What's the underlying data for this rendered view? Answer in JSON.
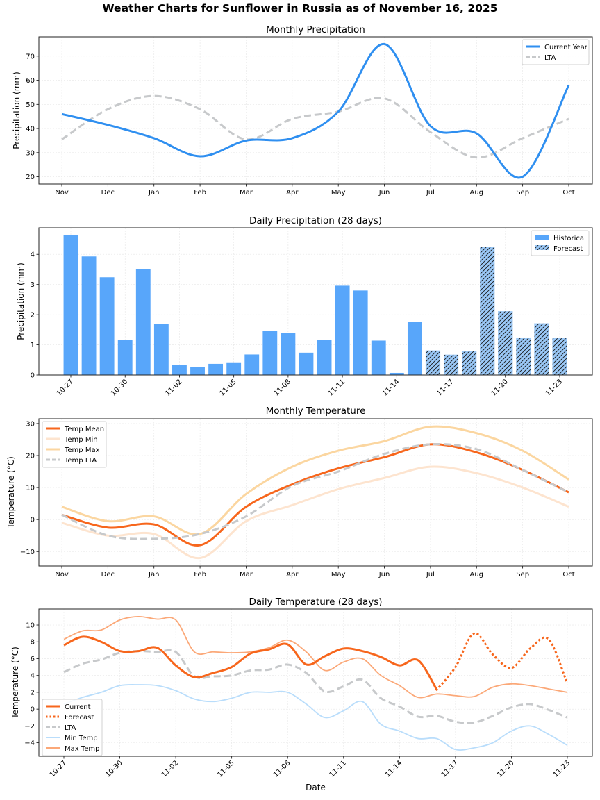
{
  "suptitle": "Weather Charts for Sunflower in Russia as of November 16, 2025",
  "colors": {
    "current_year": "#2f8ff0",
    "lta": "#c7c9cb",
    "historical_bar": "#58a6fa",
    "forecast_bar": "#9ac8f7",
    "temp_mean": "#f7661c",
    "temp_min": "#fde4cf",
    "temp_max": "#fbd6a0",
    "daily_min": "#b9ddfb",
    "daily_max": "#fba878"
  },
  "chart_data": [
    {
      "id": "monthly_precip",
      "type": "line",
      "title": "Monthly Precipitation",
      "xlabel": "",
      "ylabel": "Precipitation (mm)",
      "categories": [
        "Nov",
        "Dec",
        "Jan",
        "Feb",
        "Mar",
        "Apr",
        "May",
        "Jun",
        "Jul",
        "Aug",
        "Sep",
        "Oct"
      ],
      "yticks": [
        20,
        30,
        40,
        50,
        60,
        70
      ],
      "ylim": [
        17,
        78
      ],
      "grid": true,
      "legend_position": "upper-right",
      "series": [
        {
          "name": "Current Year",
          "style": "solid",
          "values": [
            46,
            41.5,
            36,
            28.5,
            35,
            36,
            47,
            75,
            41,
            38,
            20,
            58
          ]
        },
        {
          "name": "LTA",
          "style": "dashed",
          "values": [
            35.5,
            48,
            53.5,
            48,
            35.5,
            44,
            47,
            52.5,
            38.5,
            28,
            36,
            44
          ]
        }
      ]
    },
    {
      "id": "daily_precip",
      "type": "bar",
      "title": "Daily Precipitation (28 days)",
      "xlabel": "",
      "ylabel": "Precipitation (mm)",
      "categories": [
        "10-27",
        "10-28",
        "10-29",
        "10-30",
        "10-31",
        "11-01",
        "11-02",
        "11-03",
        "11-04",
        "11-05",
        "11-06",
        "11-07",
        "11-08",
        "11-09",
        "11-10",
        "11-11",
        "11-12",
        "11-13",
        "11-14",
        "11-15",
        "11-16",
        "11-17",
        "11-18",
        "11-19",
        "11-20",
        "11-21",
        "11-22",
        "11-23"
      ],
      "xticks": [
        "10-27",
        "10-30",
        "11-02",
        "11-05",
        "11-08",
        "11-11",
        "11-14",
        "11-17",
        "11-20",
        "11-23"
      ],
      "yticks": [
        0,
        1,
        2,
        3,
        4
      ],
      "ylim": [
        0,
        4.88
      ],
      "grid": true,
      "legend_position": "upper-right",
      "series": [
        {
          "name": "Historical",
          "values": [
            4.65,
            3.93,
            3.24,
            1.16,
            3.5,
            1.69,
            0.33,
            0.26,
            0.37,
            0.42,
            0.68,
            1.46,
            1.39,
            0.74,
            1.16,
            2.96,
            2.8,
            1.14,
            0.07,
            1.75,
            null,
            null,
            null,
            null,
            null,
            null,
            null,
            null
          ]
        },
        {
          "name": "Forecast",
          "values": [
            null,
            null,
            null,
            null,
            null,
            null,
            null,
            null,
            null,
            null,
            null,
            null,
            null,
            null,
            null,
            null,
            null,
            null,
            null,
            null,
            0.81,
            0.67,
            0.79,
            4.25,
            2.11,
            1.24,
            1.71,
            1.22
          ]
        }
      ]
    },
    {
      "id": "monthly_temp",
      "type": "line",
      "title": "Monthly Temperature",
      "xlabel": "",
      "ylabel": "Temperature (°C)",
      "categories": [
        "Nov",
        "Dec",
        "Jan",
        "Feb",
        "Mar",
        "Apr",
        "May",
        "Jun",
        "Jul",
        "Aug",
        "Sep",
        "Oct"
      ],
      "yticks": [
        -10,
        0,
        10,
        20,
        30
      ],
      "ylim": [
        -14.5,
        31.5
      ],
      "grid": true,
      "legend_position": "upper-left",
      "series": [
        {
          "name": "Temp Mean",
          "style": "solid",
          "values": [
            1.5,
            -2.5,
            -1.5,
            -8,
            4,
            11,
            16,
            19.5,
            23.5,
            21,
            15.5,
            8.5
          ]
        },
        {
          "name": "Temp Min",
          "style": "solid",
          "values": [
            -1,
            -5,
            -4.5,
            -12,
            -0.5,
            4.5,
            9.5,
            13,
            16.5,
            14.5,
            10,
            4
          ]
        },
        {
          "name": "Temp Max",
          "style": "solid",
          "values": [
            4,
            -0.5,
            1,
            -4.5,
            8,
            16.5,
            21.5,
            24.5,
            29,
            27,
            21.5,
            12.5
          ]
        },
        {
          "name": "Temp LTA",
          "style": "dashed",
          "values": [
            1.5,
            -5,
            -6,
            -4.5,
            1,
            10.5,
            15,
            20.5,
            23.5,
            22,
            15.5,
            8.5
          ]
        }
      ]
    },
    {
      "id": "daily_temp",
      "type": "line",
      "title": "Daily Temperature (28 days)",
      "xlabel": "Date",
      "ylabel": "Temperature (°C)",
      "categories": [
        "10-27",
        "10-28",
        "10-29",
        "10-30",
        "10-31",
        "11-01",
        "11-02",
        "11-03",
        "11-04",
        "11-05",
        "11-06",
        "11-07",
        "11-08",
        "11-09",
        "11-10",
        "11-11",
        "11-12",
        "11-13",
        "11-14",
        "11-15",
        "11-16",
        "11-17",
        "11-18",
        "11-19",
        "11-20",
        "11-21",
        "11-22",
        "11-23"
      ],
      "xticks": [
        "10-27",
        "10-30",
        "11-02",
        "11-05",
        "11-08",
        "11-11",
        "11-14",
        "11-17",
        "11-20",
        "11-23"
      ],
      "yticks": [
        -4,
        -2,
        0,
        2,
        4,
        6,
        8,
        10
      ],
      "ylim": [
        -5.6,
        11.9
      ],
      "grid": true,
      "legend_position": "lower-left",
      "series": [
        {
          "name": "Current",
          "style": "solid",
          "values": [
            7.6,
            8.6,
            8.0,
            6.9,
            6.9,
            7.3,
            5.2,
            3.8,
            4.3,
            5.0,
            6.6,
            7.1,
            7.7,
            5.3,
            6.3,
            7.2,
            6.9,
            6.2,
            5.2,
            5.8,
            2.3,
            null,
            null,
            null,
            null,
            null,
            null,
            null
          ]
        },
        {
          "name": "Forecast",
          "style": "dotted",
          "values": [
            null,
            null,
            null,
            null,
            null,
            null,
            null,
            null,
            null,
            null,
            null,
            null,
            null,
            null,
            null,
            null,
            null,
            null,
            null,
            null,
            2.3,
            5.0,
            9.0,
            6.5,
            4.9,
            7.2,
            8.3,
            3.0
          ]
        },
        {
          "name": "LTA",
          "style": "dashed",
          "values": [
            4.4,
            5.4,
            5.9,
            6.7,
            6.9,
            6.8,
            6.8,
            3.9,
            3.9,
            4.0,
            4.6,
            4.7,
            5.3,
            4.3,
            2.1,
            2.7,
            3.5,
            1.3,
            0.3,
            -0.9,
            -0.8,
            -1.5,
            -1.6,
            -0.8,
            0.2,
            0.6,
            -0.1,
            -1.0
          ]
        },
        {
          "name": "Min Temp",
          "style": "solid",
          "values": [
            0.6,
            1.4,
            2.0,
            2.8,
            2.9,
            2.8,
            2.2,
            1.2,
            0.9,
            1.3,
            2.0,
            2.0,
            2.0,
            0.6,
            -1.0,
            -0.2,
            0.9,
            -1.8,
            -2.6,
            -3.5,
            -3.5,
            -4.8,
            -4.6,
            -4.0,
            -2.6,
            -2.0,
            -3.0,
            -4.3
          ]
        },
        {
          "name": "Max Temp",
          "style": "solid",
          "values": [
            8.3,
            9.3,
            9.4,
            10.6,
            11.0,
            10.7,
            10.6,
            6.8,
            6.8,
            6.7,
            6.8,
            7.3,
            8.2,
            6.8,
            4.6,
            5.6,
            6.0,
            4.0,
            2.8,
            1.4,
            1.8,
            1.6,
            1.5,
            2.6,
            3.0,
            2.8,
            2.4,
            2.0
          ]
        }
      ]
    }
  ]
}
